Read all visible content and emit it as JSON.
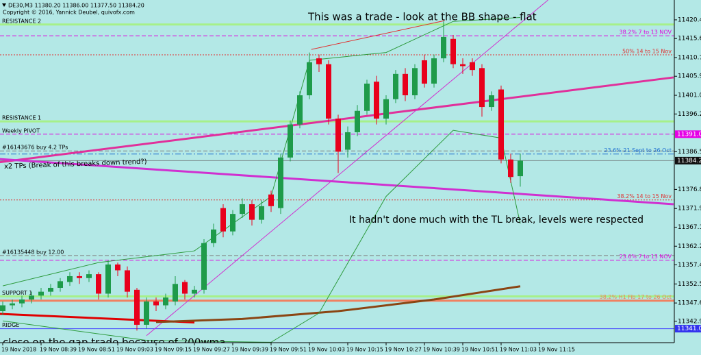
{
  "header": {
    "title": "DE30,M3  11380.20 11386.00 11377.50 11384.20",
    "copyright": "Copyright © 2016, Yannick Deubel, quivofx.com"
  },
  "annotations": [
    "This was a trade - look at the BB shape - flat",
    "It hadn't done  much with the TL break, levels were respected",
    "close on the gap trade because of 200wma",
    "x2 TPs (Break of this breaks down trend?)"
  ],
  "chart_data": {
    "type": "candlestick",
    "categories": [
      "19 Nov 2018",
      null,
      null,
      null,
      "19 Nov 08:39",
      null,
      null,
      null,
      "19 Nov 08:51",
      null,
      null,
      null,
      "19 Nov 09:03",
      null,
      null,
      null,
      "19 Nov 09:15",
      null,
      null,
      null,
      "19 Nov 09:27",
      null,
      null,
      null,
      "19 Nov 09:39",
      null,
      null,
      null,
      "19 Nov 09:51",
      null,
      null,
      null,
      "19 Nov 10:03",
      null,
      null,
      null,
      "19 Nov 10:15",
      null,
      null,
      null,
      "19 Nov 10:27",
      null,
      null,
      null,
      "19 Nov 10:39",
      null,
      null,
      null,
      "19 Nov 10:51",
      null,
      null,
      null,
      "19 Nov 11:03",
      null,
      null,
      null,
      "19 Nov 11:15"
    ],
    "open": [
      11345.5,
      11347.0,
      11347.5,
      11348.5,
      11349.5,
      11350.5,
      11351.5,
      11353.0,
      11354.5,
      11354.0,
      11355.0,
      11350.0,
      11357.5,
      11356.0,
      11351.0,
      11342.0,
      11348.0,
      11347.0,
      11348.0,
      11353.0,
      11350.0,
      11351.0,
      11363.0,
      11372.0,
      11366.0,
      11370.5,
      11373.0,
      11369.0,
      11375.5,
      11372.0,
      11385.0,
      11393.5,
      11401.0,
      11410.5,
      11409.0,
      11395.0,
      11387.0,
      11391.5,
      11397.0,
      11404.5,
      11395.0,
      11400.0,
      11406.5,
      11401.0,
      11410.0,
      11404.0,
      11410.5,
      11415.5,
      11409.0,
      11409.5,
      11408.0,
      11398.0,
      11402.5,
      11384.5,
      11380.2,
      null,
      null
    ],
    "high": [
      11348.0,
      11348.5,
      11349.5,
      11350.5,
      11351.5,
      11352.5,
      11354.0,
      11355.5,
      11355.5,
      11356.0,
      11355.5,
      11358.5,
      11358.0,
      11357.0,
      11351.5,
      11349.0,
      11349.0,
      11350.0,
      11354.5,
      11353.5,
      11352.0,
      11364.0,
      11368.0,
      11373.0,
      11371.5,
      11374.5,
      11374.0,
      11374.0,
      11376.5,
      11386.0,
      11394.5,
      11402.0,
      11412.0,
      11411.5,
      11410.0,
      11396.0,
      11393.0,
      11398.5,
      11405.0,
      11406.0,
      11401.0,
      11407.5,
      11408.0,
      11409.0,
      11411.5,
      11411.5,
      11420.0,
      11416.5,
      11410.5,
      11410.5,
      11409.0,
      11402.0,
      11403.5,
      11386.0,
      11386.0,
      null,
      null
    ],
    "low": [
      11344.5,
      11346.0,
      11346.5,
      11347.5,
      11348.5,
      11349.5,
      11350.5,
      11352.0,
      11352.5,
      11353.0,
      11348.5,
      11349.0,
      11354.5,
      11349.0,
      11340.5,
      11341.0,
      11345.5,
      11346.0,
      11347.0,
      11348.5,
      11349.0,
      11350.0,
      11362.0,
      11364.5,
      11365.0,
      11369.5,
      11367.5,
      11368.0,
      11371.0,
      11370.5,
      11384.0,
      11392.5,
      11400.0,
      11407.0,
      11393.5,
      11381.0,
      11385.0,
      11390.5,
      11396.0,
      11393.5,
      11393.5,
      11399.0,
      11399.5,
      11400.0,
      11403.0,
      11403.0,
      11409.5,
      11408.0,
      11406.5,
      11406.0,
      11395.5,
      11397.0,
      11383.5,
      11378.5,
      11377.5,
      null,
      null
    ],
    "close": [
      11347.0,
      11347.5,
      11348.5,
      11349.5,
      11350.5,
      11351.5,
      11353.2,
      11354.5,
      11354.0,
      11355.0,
      11350.0,
      11357.5,
      11356.0,
      11350.5,
      11342.0,
      11348.0,
      11347.0,
      11349.0,
      11352.5,
      11350.0,
      11351.0,
      11363.0,
      11366.5,
      11366.0,
      11370.5,
      11373.0,
      11369.0,
      11372.5,
      11372.5,
      11385.0,
      11393.5,
      11401.0,
      11409.5,
      11409.0,
      11395.0,
      11386.5,
      11391.5,
      11397.0,
      11404.0,
      11395.0,
      11400.0,
      11406.5,
      11401.0,
      11408.0,
      11404.0,
      11410.5,
      11416.0,
      11409.0,
      11408.5,
      11407.5,
      11398.0,
      11401.0,
      11384.5,
      11380.0,
      11384.2,
      null,
      null
    ],
    "up_color": "#1e9b4a",
    "down_color": "#e8001c",
    "ylim": [
      11337.4,
      11425.5
    ],
    "yticks": [
      {
        "value": 11420.4,
        "label": "11420.40"
      },
      {
        "value": 11415.6,
        "label": "11415.60"
      },
      {
        "value": 11410.7,
        "label": "11410.70"
      },
      {
        "value": 11405.9,
        "label": "11405.90"
      },
      {
        "value": 11401.0,
        "label": "11401.00"
      },
      {
        "value": 11396.2,
        "label": "11396.20"
      },
      {
        "value": 11386.5,
        "label": "11386.50"
      },
      {
        "value": 11376.8,
        "label": "11376.80"
      },
      {
        "value": 11371.9,
        "label": "11371.90"
      },
      {
        "value": 11367.1,
        "label": "11367.10"
      },
      {
        "value": 11362.2,
        "label": "11362.20"
      },
      {
        "value": 11357.4,
        "label": "11357.40"
      },
      {
        "value": 11352.5,
        "label": "11352.50"
      },
      {
        "value": 11347.6,
        "label": "11347.60"
      },
      {
        "value": 11342.9,
        "label": "11342.90"
      }
    ],
    "levels": [
      {
        "value": 11419.2,
        "label": "RESISTANCE 2",
        "side": "left",
        "color": "#a6f08a",
        "style": "thick"
      },
      {
        "value": 11416.3,
        "label": "38.2%  7 to 13 NOV",
        "side": "right",
        "color": "#e000e0",
        "style": "dashed"
      },
      {
        "value": 11411.4,
        "label": "50%  14 to 15 Nov",
        "side": "right",
        "color": "#e03030",
        "style": "dotted"
      },
      {
        "value": 11394.3,
        "label": "RESISTANCE 1",
        "side": "left",
        "color": "#a6f08a",
        "style": "thick"
      },
      {
        "value": 11391.0,
        "label": "Weekly PIVOT",
        "side": "left",
        "color": "#e000e0",
        "style": "dashed"
      },
      {
        "value": 11386.7,
        "label": "#16143676 buy 4.2 TPs",
        "side": "left",
        "color": "#808080",
        "style": "dashed"
      },
      {
        "value": 11385.9,
        "label": "23.6%  21 Sept to 26 Oct",
        "side": "right",
        "color": "#1e6fd0",
        "style": "dashdot"
      },
      {
        "value": 11384.2,
        "color": "#7a8a8a",
        "style": "solid"
      },
      {
        "value": 11374.1,
        "label": "38.2%  14 to 15 Nov",
        "side": "right",
        "color": "#e03030",
        "style": "dotted"
      },
      {
        "value": 11359.8,
        "label": "#16135448 buy 12.00",
        "side": "left",
        "color": "#808080",
        "style": "dashed"
      },
      {
        "value": 11358.6,
        "label": "23.6%  7 to 13 NOV",
        "side": "right",
        "color": "#e000e0",
        "style": "dashed"
      },
      {
        "value": 11349.3,
        "label": "SUPPORT 1",
        "side": "left",
        "color": "#a6f08a",
        "style": "thick"
      },
      {
        "value": 11348.2,
        "label": "38.2%  H1 Fib 17 to 26 Oct",
        "side": "right",
        "color": "#f08060",
        "style": "thick"
      },
      {
        "value": 11341.0,
        "label": "RIDGE",
        "side": "left",
        "color": "#4444ff",
        "style": "solid"
      }
    ],
    "price_labels": [
      {
        "value": 11391.0,
        "label": "11391.00",
        "color": "#e600e6"
      },
      {
        "value": 11384.2,
        "label": "11384.20",
        "color": "#111111"
      },
      {
        "value": 11341.0,
        "label": "11341.00",
        "color": "#3333ee"
      }
    ],
    "lines": [
      {
        "color": "#e0309b",
        "style": "thick",
        "points": [
          [
            -0.3,
            11383.8
          ],
          [
            70,
            11405.6
          ]
        ]
      },
      {
        "color": "#d030d0",
        "style": "thick",
        "points": [
          [
            -0.3,
            11384.6
          ],
          [
            70,
            11373.0
          ]
        ]
      },
      {
        "color": "#d030d0",
        "style": "solid",
        "points": [
          [
            15,
            11339.2
          ],
          [
            56.9,
            11425.5
          ]
        ]
      },
      {
        "color": "#e03030",
        "style": "solid",
        "points": [
          [
            32.2,
            11412.8
          ],
          [
            46.1,
            11420.2
          ]
        ]
      },
      {
        "color": "#e00000",
        "style": "thick",
        "points": [
          [
            -0.3,
            11344.8
          ],
          [
            20,
            11342.6
          ]
        ]
      },
      {
        "color": "#8b4513",
        "style": "thick",
        "points": [
          [
            16,
            11342.7
          ],
          [
            25,
            11343.5
          ],
          [
            35,
            11345.5
          ],
          [
            45,
            11348.5
          ],
          [
            54,
            11351.9
          ]
        ]
      },
      {
        "color": "#2e9b3e",
        "style": "solid",
        "points": [
          [
            0,
            11352.0
          ],
          [
            10,
            11358.0
          ],
          [
            20,
            11361.0
          ],
          [
            28,
            11375.0
          ],
          [
            32,
            11410.0
          ],
          [
            40,
            11412.0
          ],
          [
            47,
            11420.0
          ],
          [
            54,
            11421.0
          ]
        ]
      },
      {
        "color": "#2e9b3e",
        "style": "solid",
        "points": [
          [
            0,
            11343.0
          ],
          [
            15,
            11338.0
          ],
          [
            28,
            11337.5
          ],
          [
            33,
            11345.0
          ],
          [
            40,
            11375.0
          ],
          [
            47,
            11392.0
          ],
          [
            52,
            11390.0
          ],
          [
            54,
            11368.0
          ]
        ]
      }
    ]
  }
}
